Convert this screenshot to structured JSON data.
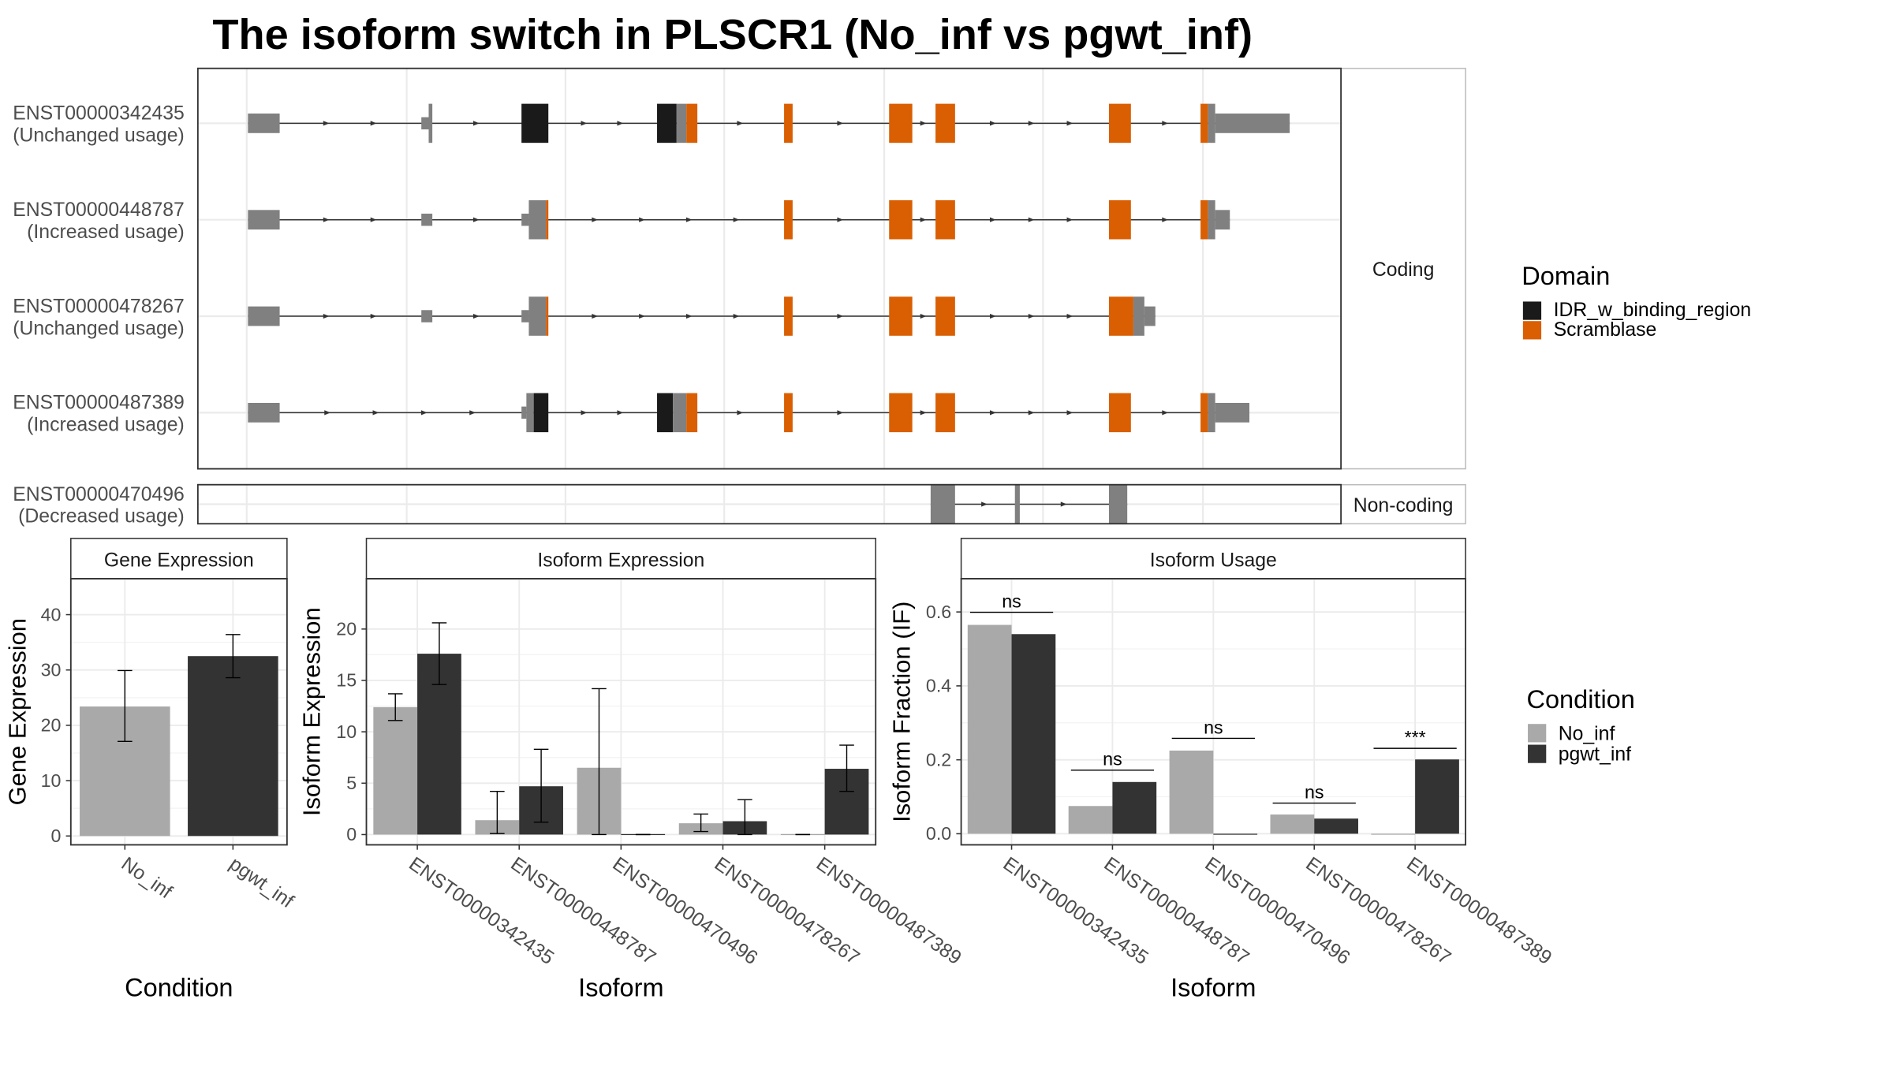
{
  "title": "The isoform switch in PLSCR1 (No_inf vs pgwt_inf)",
  "colors": {
    "utr": "#808080",
    "IDR_w_binding_region": "#1a1a1a",
    "Scramblase": "#d95f02",
    "No_inf": "#a9a9a9",
    "pgwt_inf": "#333333",
    "frame": "#333333",
    "grid": "#ebebeb",
    "strip": "#ffffff"
  },
  "structure": {
    "domain_legend": {
      "title": "Domain",
      "items": [
        {
          "name": "IDR_w_binding_region",
          "color": "#1a1a1a"
        },
        {
          "name": "Scramblase",
          "color": "#d95f02"
        }
      ]
    },
    "facets": {
      "coding": "Coding",
      "noncoding": "Non-coding"
    },
    "transcripts": [
      {
        "id": "ENST00000342435",
        "usage": "(Unchanged usage)",
        "group": "coding",
        "exons": [
          {
            "s": 203,
            "e": 229,
            "h": "utr"
          },
          {
            "s": 345,
            "e": 351,
            "h": "utr_s"
          },
          {
            "s": 351,
            "e": 354,
            "h": "full"
          },
          {
            "s": 427,
            "e": 449,
            "h": "IDR"
          },
          {
            "s": 538,
            "e": 554,
            "h": "IDR"
          },
          {
            "s": 554,
            "e": 562,
            "h": "full"
          },
          {
            "s": 562,
            "e": 571,
            "h": "Scr"
          },
          {
            "s": 642,
            "e": 649,
            "h": "Scr"
          },
          {
            "s": 728,
            "e": 747,
            "h": "Scr"
          },
          {
            "s": 766,
            "e": 782,
            "h": "Scr"
          },
          {
            "s": 908,
            "e": 926,
            "h": "Scr"
          },
          {
            "s": 983,
            "e": 989,
            "h": "Scr"
          },
          {
            "s": 989,
            "e": 995,
            "h": "full"
          },
          {
            "s": 995,
            "e": 1056,
            "h": "utr"
          }
        ]
      },
      {
        "id": "ENST00000448787",
        "usage": "(Increased usage)",
        "group": "coding",
        "exons": [
          {
            "s": 203,
            "e": 229,
            "h": "utr"
          },
          {
            "s": 345,
            "e": 354,
            "h": "utr_s"
          },
          {
            "s": 427,
            "e": 433,
            "h": "utr_s"
          },
          {
            "s": 433,
            "e": 447,
            "h": "full"
          },
          {
            "s": 447,
            "e": 449,
            "h": "Scr"
          },
          {
            "s": 642,
            "e": 649,
            "h": "Scr"
          },
          {
            "s": 728,
            "e": 747,
            "h": "Scr"
          },
          {
            "s": 766,
            "e": 782,
            "h": "Scr"
          },
          {
            "s": 908,
            "e": 926,
            "h": "Scr"
          },
          {
            "s": 983,
            "e": 989,
            "h": "Scr"
          },
          {
            "s": 989,
            "e": 995,
            "h": "full"
          },
          {
            "s": 995,
            "e": 1007,
            "h": "utr"
          }
        ]
      },
      {
        "id": "ENST00000478267",
        "usage": "(Unchanged usage)",
        "group": "coding",
        "exons": [
          {
            "s": 203,
            "e": 229,
            "h": "utr"
          },
          {
            "s": 345,
            "e": 354,
            "h": "utr_s"
          },
          {
            "s": 427,
            "e": 433,
            "h": "utr_s"
          },
          {
            "s": 433,
            "e": 447,
            "h": "full"
          },
          {
            "s": 447,
            "e": 449,
            "h": "Scr"
          },
          {
            "s": 642,
            "e": 649,
            "h": "Scr"
          },
          {
            "s": 728,
            "e": 747,
            "h": "Scr"
          },
          {
            "s": 766,
            "e": 782,
            "h": "Scr"
          },
          {
            "s": 908,
            "e": 928,
            "h": "Scr"
          },
          {
            "s": 928,
            "e": 937,
            "h": "full"
          },
          {
            "s": 937,
            "e": 946,
            "h": "utr"
          }
        ]
      },
      {
        "id": "ENST00000487389",
        "usage": "(Increased usage)",
        "group": "coding",
        "exons": [
          {
            "s": 203,
            "e": 229,
            "h": "utr"
          },
          {
            "s": 427,
            "e": 431,
            "h": "utr_s"
          },
          {
            "s": 431,
            "e": 437,
            "h": "full"
          },
          {
            "s": 437,
            "e": 449,
            "h": "IDR"
          },
          {
            "s": 538,
            "e": 551,
            "h": "IDR"
          },
          {
            "s": 551,
            "e": 562,
            "h": "full"
          },
          {
            "s": 562,
            "e": 571,
            "h": "Scr"
          },
          {
            "s": 642,
            "e": 649,
            "h": "Scr"
          },
          {
            "s": 728,
            "e": 747,
            "h": "Scr"
          },
          {
            "s": 766,
            "e": 782,
            "h": "Scr"
          },
          {
            "s": 908,
            "e": 926,
            "h": "Scr"
          },
          {
            "s": 983,
            "e": 989,
            "h": "Scr"
          },
          {
            "s": 989,
            "e": 995,
            "h": "full"
          },
          {
            "s": 995,
            "e": 1023,
            "h": "utr"
          }
        ]
      },
      {
        "id": "ENST00000470496",
        "usage": "(Decreased usage)",
        "group": "noncoding",
        "exons": [
          {
            "s": 762,
            "e": 782,
            "h": "nc"
          },
          {
            "s": 831,
            "e": 835,
            "h": "nc"
          },
          {
            "s": 908,
            "e": 923,
            "h": "nc"
          }
        ]
      }
    ]
  },
  "condition_legend": {
    "title": "Condition",
    "items": [
      {
        "name": "No_inf",
        "color": "#a9a9a9"
      },
      {
        "name": "pgwt_inf",
        "color": "#333333"
      }
    ]
  },
  "chart_data": [
    {
      "type": "bar",
      "title": "Gene Expression",
      "xlabel": "Condition",
      "ylabel": "Gene Expression",
      "categories": [
        "No_inf",
        "pgwt_inf"
      ],
      "ylim": [
        -1.6,
        46.5
      ],
      "yticks": [
        0,
        10,
        20,
        30,
        40
      ],
      "tick_labels": [
        "0",
        "10",
        "20",
        "30",
        "40"
      ],
      "series": [
        {
          "values": [
            23.4,
            32.5
          ],
          "err_low": [
            17.1,
            28.6
          ],
          "err_high": [
            29.9,
            36.4
          ]
        }
      ],
      "grid": true
    },
    {
      "type": "bar",
      "title": "Isoform Expression",
      "xlabel": "Isoform",
      "ylabel": "Isoform Expression",
      "categories": [
        "ENST00000342435",
        "ENST00000448787",
        "ENST00000470496",
        "ENST00000478267",
        "ENST00000487389"
      ],
      "ylim": [
        -1.0,
        24.9
      ],
      "yticks": [
        0,
        5,
        10,
        15,
        20
      ],
      "tick_labels": [
        "0",
        "5",
        "10",
        "15",
        "20"
      ],
      "series": [
        {
          "name": "No_inf",
          "values": [
            12.4,
            1.4,
            6.5,
            1.1,
            0.05
          ],
          "err_low": [
            11.1,
            0.1,
            0.0,
            0.3,
            0.0
          ],
          "err_high": [
            13.7,
            4.2,
            14.2,
            2.0,
            0.0
          ]
        },
        {
          "name": "pgwt_inf",
          "values": [
            17.6,
            4.7,
            0.05,
            1.3,
            6.4
          ],
          "err_low": [
            14.6,
            1.2,
            0.0,
            0.0,
            4.2
          ],
          "err_high": [
            20.6,
            8.3,
            0.0,
            3.4,
            8.7
          ]
        }
      ],
      "grid": true
    },
    {
      "type": "bar",
      "title": "Isoform Usage",
      "xlabel": "Isoform",
      "ylabel": "Isoform Fraction (IF)",
      "categories": [
        "ENST00000342435",
        "ENST00000448787",
        "ENST00000470496",
        "ENST00000478267",
        "ENST00000487389"
      ],
      "ylim": [
        -0.03,
        0.69
      ],
      "yticks": [
        0,
        0.2,
        0.4,
        0.6
      ],
      "tick_labels": [
        "0.0",
        "0.2",
        "0.4",
        "0.6"
      ],
      "series": [
        {
          "name": "No_inf",
          "values": [
            0.565,
            0.075,
            0.225,
            0.052,
            0.0
          ]
        },
        {
          "name": "pgwt_inf",
          "values": [
            0.54,
            0.14,
            0.0,
            0.041,
            0.201
          ]
        }
      ],
      "significance": [
        {
          "category": "ENST00000342435",
          "label": "ns",
          "at": 0.599
        },
        {
          "category": "ENST00000448787",
          "label": "ns",
          "at": 0.172
        },
        {
          "category": "ENST00000470496",
          "label": "ns",
          "at": 0.258
        },
        {
          "category": "ENST00000478267",
          "label": "ns",
          "at": 0.083
        },
        {
          "category": "ENST00000487389",
          "label": "***",
          "at": 0.231
        }
      ],
      "grid": true
    }
  ]
}
